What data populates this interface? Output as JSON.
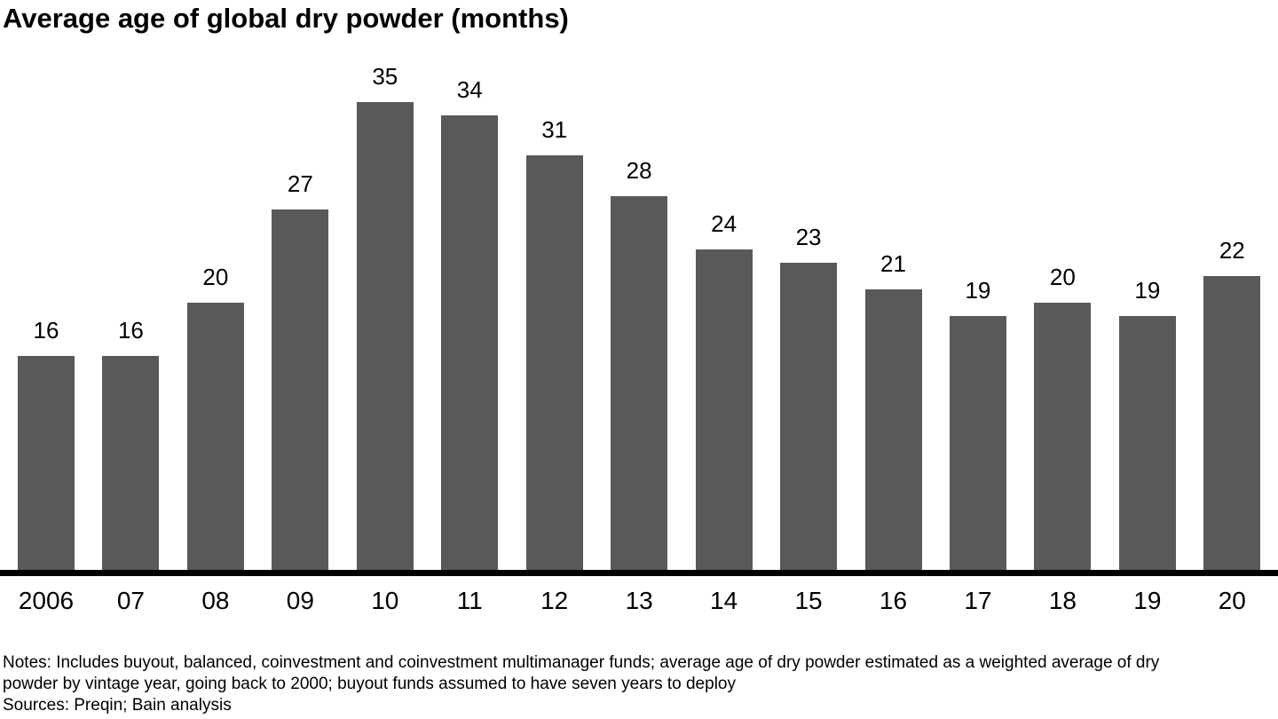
{
  "title": "Average age of global dry powder (months)",
  "chart_data": {
    "type": "bar",
    "categories": [
      "2006",
      "07",
      "08",
      "09",
      "10",
      "11",
      "12",
      "13",
      "14",
      "15",
      "16",
      "17",
      "18",
      "19",
      "20"
    ],
    "values": [
      16,
      16,
      20,
      27,
      35,
      34,
      31,
      28,
      24,
      23,
      21,
      19,
      20,
      19,
      22
    ],
    "title": "Average age of global dry powder (months)",
    "xlabel": "",
    "ylabel": "",
    "ylim": [
      0,
      35
    ],
    "bar_color": "#595959",
    "value_labels_shown": true,
    "grid": false,
    "legend": false,
    "axis_line_color": "#000000"
  },
  "footnotes": {
    "notes_lines": [
      "Notes: Includes buyout, balanced, coinvestment and coinvestment multimanager funds; average age of dry powder estimated as a weighted average of dry",
      "powder by vintage year, going back to 2000; buyout funds assumed to have seven years to deploy"
    ],
    "sources": "Sources: Preqin; Bain analysis"
  }
}
